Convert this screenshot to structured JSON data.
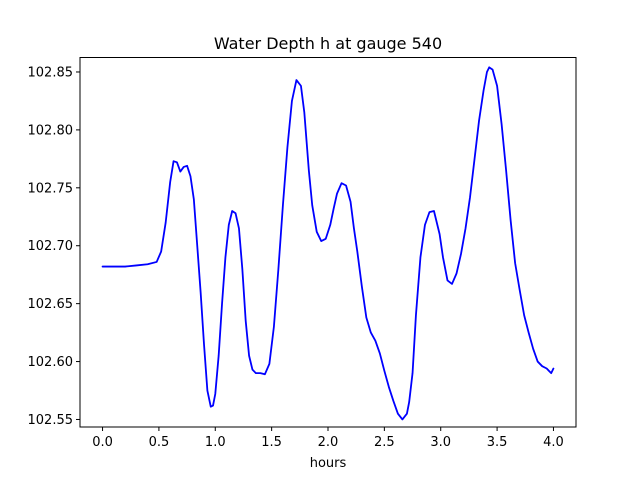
{
  "chart_data": {
    "type": "line",
    "title": "Water Depth h at gauge 540",
    "xlabel": "hours",
    "ylabel": "",
    "xlim": [
      -0.2,
      4.2
    ],
    "ylim": [
      102.5435,
      102.8625
    ],
    "xticks": [
      0.0,
      0.5,
      1.0,
      1.5,
      2.0,
      2.5,
      3.0,
      3.5,
      4.0
    ],
    "xtick_labels": [
      "0.0",
      "0.5",
      "1.0",
      "1.5",
      "2.0",
      "2.5",
      "3.0",
      "3.5",
      "4.0"
    ],
    "yticks": [
      102.55,
      102.6,
      102.65,
      102.7,
      102.75,
      102.8,
      102.85
    ],
    "ytick_labels": [
      "102.55",
      "102.60",
      "102.65",
      "102.70",
      "102.75",
      "102.80",
      "102.85"
    ],
    "grid": false,
    "legend": "none",
    "series": [
      {
        "color": "#0000ff",
        "x": [
          0.0,
          0.2,
          0.3,
          0.4,
          0.48,
          0.52,
          0.56,
          0.6,
          0.63,
          0.66,
          0.69,
          0.72,
          0.75,
          0.78,
          0.81,
          0.84,
          0.87,
          0.9,
          0.93,
          0.96,
          0.98,
          1.0,
          1.03,
          1.06,
          1.09,
          1.12,
          1.15,
          1.18,
          1.21,
          1.24,
          1.27,
          1.3,
          1.33,
          1.36,
          1.4,
          1.44,
          1.48,
          1.52,
          1.56,
          1.6,
          1.64,
          1.68,
          1.72,
          1.76,
          1.79,
          1.81,
          1.83,
          1.86,
          1.9,
          1.94,
          1.98,
          2.02,
          2.05,
          2.08,
          2.12,
          2.16,
          2.2,
          2.23,
          2.26,
          2.3,
          2.34,
          2.38,
          2.42,
          2.46,
          2.5,
          2.54,
          2.58,
          2.62,
          2.66,
          2.7,
          2.72,
          2.75,
          2.78,
          2.82,
          2.86,
          2.9,
          2.94,
          2.96,
          2.99,
          3.02,
          3.06,
          3.1,
          3.14,
          3.18,
          3.22,
          3.26,
          3.3,
          3.34,
          3.38,
          3.41,
          3.43,
          3.46,
          3.5,
          3.54,
          3.58,
          3.62,
          3.66,
          3.7,
          3.74,
          3.78,
          3.82,
          3.86,
          3.9,
          3.94,
          3.96,
          3.98,
          4.0
        ],
        "y": [
          102.682,
          102.682,
          102.683,
          102.684,
          102.686,
          102.695,
          102.72,
          102.755,
          102.773,
          102.772,
          102.764,
          102.768,
          102.769,
          102.76,
          102.74,
          102.7,
          102.66,
          102.615,
          102.575,
          102.561,
          102.562,
          102.572,
          102.605,
          102.65,
          102.69,
          102.718,
          102.73,
          102.728,
          102.715,
          102.68,
          102.635,
          102.605,
          102.593,
          102.59,
          102.59,
          102.589,
          102.598,
          102.63,
          102.68,
          102.735,
          102.785,
          102.825,
          102.843,
          102.838,
          102.815,
          102.79,
          102.765,
          102.735,
          102.712,
          102.704,
          102.706,
          102.718,
          102.732,
          102.745,
          102.754,
          102.752,
          102.738,
          102.715,
          102.695,
          102.665,
          102.638,
          102.625,
          102.618,
          102.607,
          102.592,
          102.578,
          102.566,
          102.555,
          102.55,
          102.555,
          102.565,
          102.59,
          102.64,
          102.69,
          102.718,
          102.729,
          102.73,
          102.722,
          102.71,
          102.69,
          102.67,
          102.667,
          102.676,
          102.693,
          102.715,
          102.742,
          102.775,
          102.808,
          102.834,
          102.85,
          102.854,
          102.852,
          102.838,
          102.805,
          102.765,
          102.722,
          102.685,
          102.662,
          102.64,
          102.625,
          102.611,
          102.6,
          102.596,
          102.594,
          102.592,
          102.59,
          102.594
        ]
      }
    ]
  }
}
